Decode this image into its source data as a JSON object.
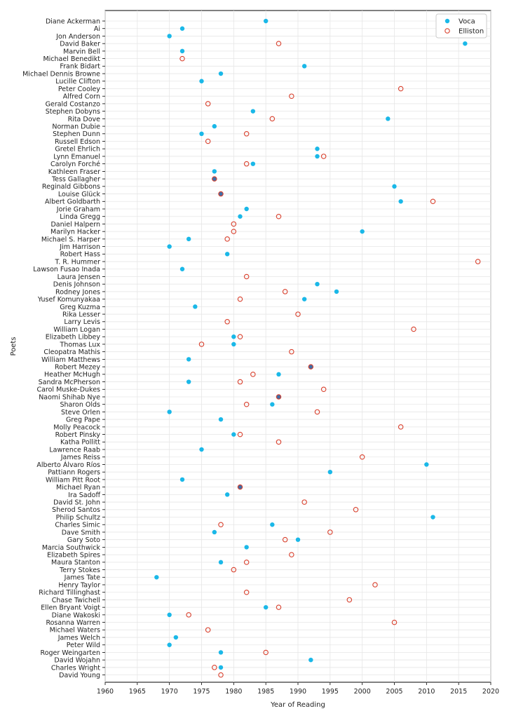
{
  "chart_data": {
    "type": "scatter",
    "title": "",
    "xlabel": "Year of Reading",
    "ylabel": "Poets",
    "xlim": [
      1960,
      2020
    ],
    "xticks": [
      1960,
      1965,
      1970,
      1975,
      1980,
      1985,
      1990,
      1995,
      2000,
      2005,
      2010,
      2015,
      2020
    ],
    "grid": true,
    "legend_position": "top-right",
    "colors": {
      "voca": "#1ab8e8",
      "elliston": "#d9412e",
      "overlap_fill": "#3f6fa8"
    },
    "categories": [
      "Diane Ackerman",
      "Ai",
      "Jon Anderson",
      "David Baker",
      "Marvin Bell",
      "Michael Benedikt",
      "Frank Bidart",
      "Michael Dennis Browne",
      "Lucille Clifton",
      "Peter Cooley",
      "Alfred Corn",
      "Gerald Costanzo",
      "Stephen Dobyns",
      "Rita Dove",
      "Norman Dubie",
      "Stephen Dunn",
      "Russell Edson",
      "Gretel Ehrlich",
      "Lynn Emanuel",
      "Carolyn Forché",
      "Kathleen Fraser",
      "Tess Gallagher",
      "Reginald Gibbons",
      "Louise Glück",
      "Albert Goldbarth",
      "Jorie Graham",
      "Linda Gregg",
      "Daniel Halpern",
      "Marilyn Hacker",
      "Michael S. Harper",
      "Jim Harrison",
      "Robert Hass",
      "T. R. Hummer",
      "Lawson Fusao Inada",
      "Laura Jensen",
      "Denis Johnson",
      "Rodney Jones",
      "Yusef Komunyakaa",
      "Greg Kuzma",
      "Rika Lesser",
      "Larry Levis",
      "William Logan",
      "Elizabeth Libbey",
      "Thomas Lux",
      "Cleopatra Mathis",
      "William Matthews",
      "Robert Mezey",
      "Heather McHugh",
      "Sandra McPherson",
      "Carol Muske-Dukes",
      "Naomi Shihab Nye",
      "Sharon Olds",
      "Steve Orlen",
      "Greg Pape",
      "Molly Peacock",
      "Robert Pinsky",
      "Katha Pollitt",
      "Lawrence Raab",
      "James Reiss",
      "Alberto Álvaro Ríos",
      "Pattiann Rogers",
      "William Pitt Root",
      "Michael Ryan",
      "Ira Sadoff",
      "David St. John",
      "Sherod Santos",
      "Philip Schultz",
      "Charles Simic",
      "Dave Smith",
      "Gary Soto",
      "Marcia Southwick",
      "Elizabeth Spires",
      "Maura Stanton",
      "Terry Stokes",
      "James Tate",
      "Henry Taylor",
      "Richard Tillinghast",
      "Chase Twichell",
      "Ellen Bryant Voigt",
      "Diane Wakoski",
      "Rosanna Warren",
      "Michael Waters",
      "James Welch",
      "Peter Wild",
      "Roger Weingarten",
      "David Wojahn",
      "Charles Wright",
      "David Young"
    ],
    "series": [
      {
        "name": "Voca",
        "marker": "filled-circle",
        "values": [
          1985,
          1972,
          1970,
          2016,
          1972,
          null,
          1991,
          1978,
          1975,
          null,
          null,
          null,
          1983,
          2004,
          1977,
          1975,
          null,
          1993,
          1993,
          1983,
          1977,
          1977,
          2005,
          1978,
          2006,
          1982,
          1981,
          null,
          2000,
          1973,
          1970,
          1979,
          null,
          1972,
          null,
          1993,
          1996,
          1991,
          1974,
          null,
          null,
          null,
          1980,
          1980,
          null,
          1973,
          1992,
          1987,
          1973,
          null,
          1987,
          1986,
          1970,
          1978,
          null,
          1980,
          null,
          1975,
          null,
          2010,
          1995,
          1972,
          1981,
          1979,
          null,
          null,
          2011,
          1986,
          1977,
          1990,
          1982,
          null,
          1978,
          null,
          1968,
          null,
          null,
          null,
          1985,
          1970,
          null,
          null,
          1971,
          1970,
          1978,
          1992,
          1978,
          null
        ]
      },
      {
        "name": "Elliston",
        "marker": "open-circle",
        "values": [
          null,
          null,
          null,
          1987,
          null,
          1972,
          null,
          null,
          null,
          2006,
          1989,
          1976,
          null,
          1986,
          null,
          1982,
          1976,
          null,
          1994,
          1982,
          null,
          1977,
          null,
          1978,
          2011,
          null,
          1987,
          1980,
          1980,
          1979,
          null,
          null,
          2018,
          null,
          1982,
          null,
          1988,
          1981,
          null,
          1990,
          1979,
          2008,
          1981,
          1975,
          1989,
          null,
          1992,
          1983,
          1981,
          1994,
          1987,
          1982,
          1993,
          null,
          2006,
          1981,
          1987,
          null,
          2000,
          null,
          null,
          null,
          1981,
          null,
          1991,
          1999,
          null,
          1978,
          1995,
          1988,
          null,
          1989,
          1982,
          1980,
          null,
          2002,
          1982,
          1998,
          1987,
          1973,
          2005,
          1976,
          null,
          null,
          1985,
          null,
          1977,
          1978
        ]
      }
    ]
  }
}
